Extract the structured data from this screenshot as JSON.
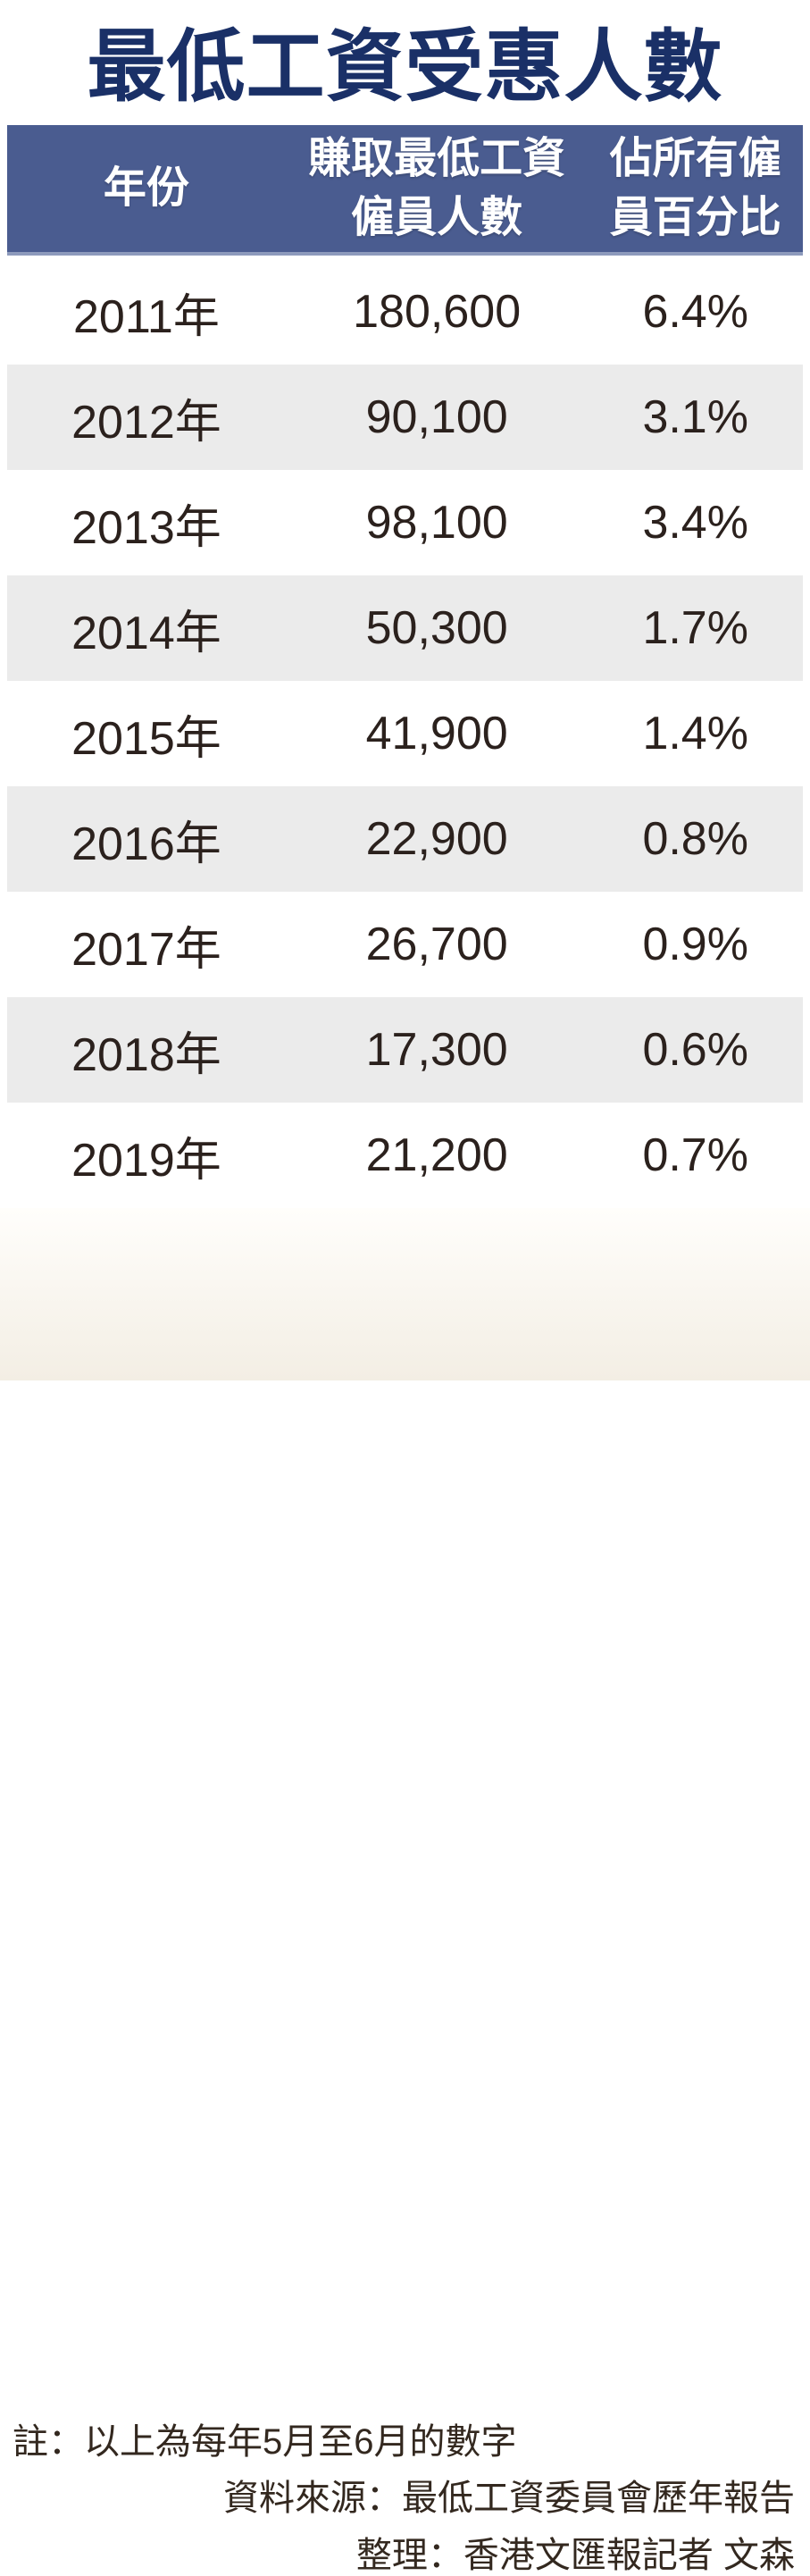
{
  "title": "最低工資受惠人數",
  "chart_data": {
    "type": "table",
    "title": "最低工資受惠人數",
    "columns": [
      "年份",
      "賺取最低工資僱員人數",
      "佔所有僱員百分比"
    ],
    "rows": [
      {
        "year": "2011年",
        "count": "180,600",
        "count_value": 180600,
        "pct": "6.4%",
        "pct_value": 6.4
      },
      {
        "year": "2012年",
        "count": "90,100",
        "count_value": 90100,
        "pct": "3.1%",
        "pct_value": 3.1
      },
      {
        "year": "2013年",
        "count": "98,100",
        "count_value": 98100,
        "pct": "3.4%",
        "pct_value": 3.4
      },
      {
        "year": "2014年",
        "count": "50,300",
        "count_value": 50300,
        "pct": "1.7%",
        "pct_value": 1.7
      },
      {
        "year": "2015年",
        "count": "41,900",
        "count_value": 41900,
        "pct": "1.4%",
        "pct_value": 1.4
      },
      {
        "year": "2016年",
        "count": "22,900",
        "count_value": 22900,
        "pct": "0.8%",
        "pct_value": 0.8
      },
      {
        "year": "2017年",
        "count": "26,700",
        "count_value": 26700,
        "pct": "0.9%",
        "pct_value": 0.9
      },
      {
        "year": "2018年",
        "count": "17,300",
        "count_value": 17300,
        "pct": "0.6%",
        "pct_value": 0.6
      },
      {
        "year": "2019年",
        "count": "21,200",
        "count_value": 21200,
        "pct": "0.7%",
        "pct_value": 0.7
      }
    ],
    "layout_hints": {
      "alternating_row_shading": true,
      "shaded_rows": [
        "2012年",
        "2014年",
        "2016年",
        "2018年"
      ]
    }
  },
  "header": {
    "col_year": "年份",
    "col_count_line1": "賺取最低工資",
    "col_count_line2": "僱員人數",
    "col_pct_line1": "佔所有僱",
    "col_pct_line2": "員百分比"
  },
  "notes": {
    "note": "註：以上為每年5月至6月的數字",
    "source": "資料來源：最低工資委員會歷年報告",
    "credit": "整理：香港文匯報記者  文森"
  },
  "colors": {
    "title_color": "#1a3067",
    "header_bg": "#4a5c90",
    "header_edge": "#8d9abc",
    "header_text": "#ffffff",
    "row_alt_bg": "#ebebeb",
    "body_text": "#2b211d",
    "note_text": "#33281f",
    "footer_start": "#fffefb",
    "footer_end": "#f3eee4"
  }
}
